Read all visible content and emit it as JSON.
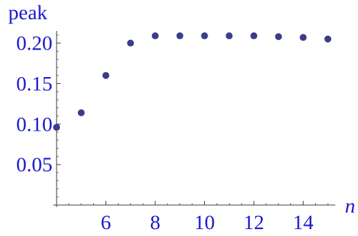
{
  "chart_data": {
    "type": "scatter",
    "title": "",
    "xlabel": "n",
    "ylabel": "peak",
    "xlim": [
      4,
      15.3
    ],
    "ylim": [
      0.0,
      0.215
    ],
    "x_ticks": [
      6,
      8,
      10,
      12,
      14
    ],
    "x_tick_labels": [
      "6",
      "8",
      "10",
      "12",
      "14"
    ],
    "y_ticks": [
      0.05,
      0.1,
      0.15,
      0.2
    ],
    "y_tick_labels": [
      "0.05",
      "0.10",
      "0.15",
      "0.20"
    ],
    "grid": false,
    "legend": "none",
    "point_color": "#3c3c8c",
    "text_color": "#1a1acc",
    "series": [
      {
        "x": [
          4,
          5,
          6,
          7,
          8,
          9,
          10,
          11,
          12,
          13,
          14,
          15
        ],
        "y": [
          0.096,
          0.114,
          0.16,
          0.2,
          0.209,
          0.209,
          0.209,
          0.209,
          0.209,
          0.208,
          0.207,
          0.205
        ]
      }
    ]
  }
}
